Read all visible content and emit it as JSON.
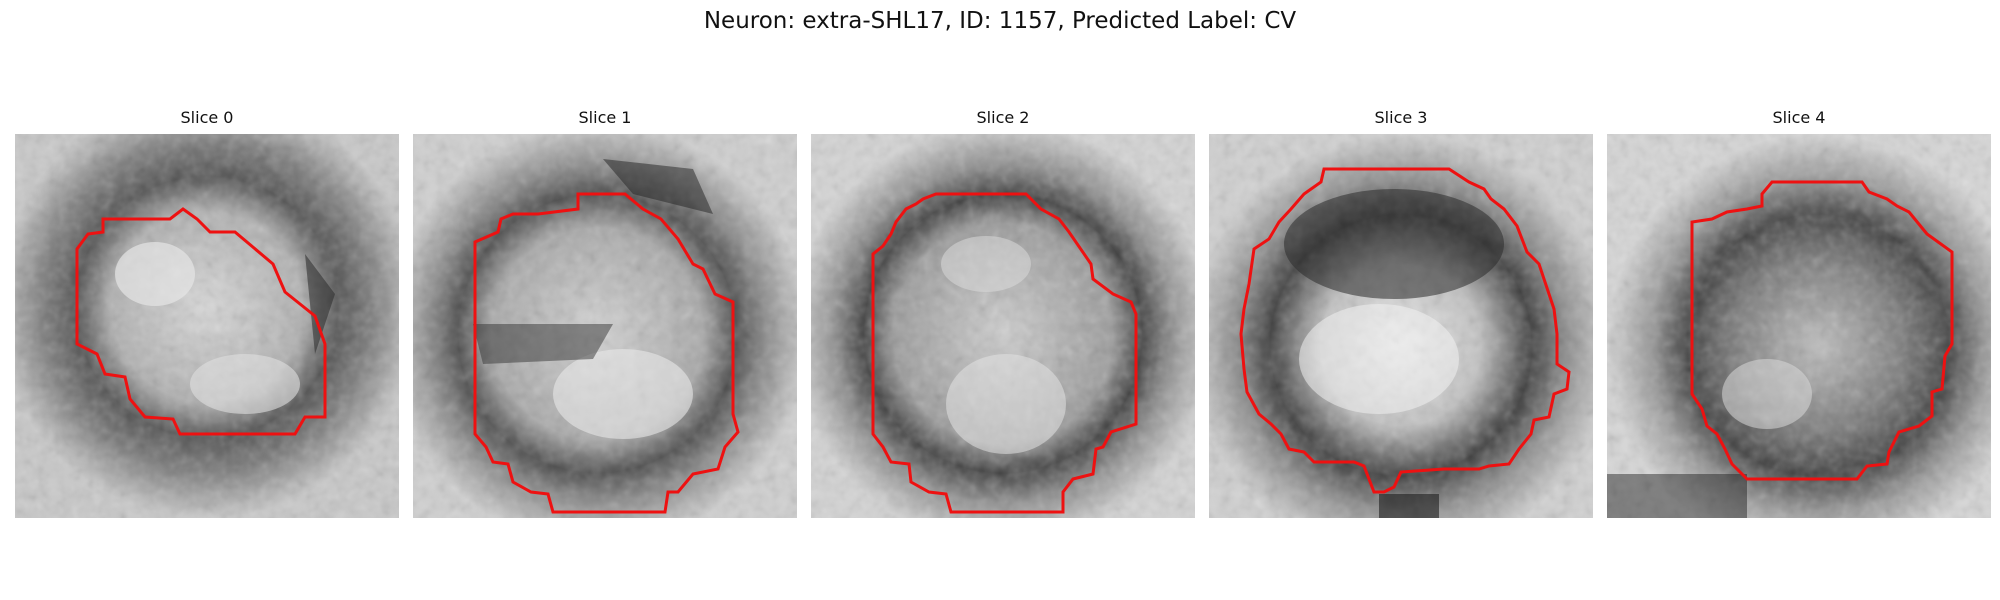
{
  "figure": {
    "title": "Neuron: extra-SHL17, ID: 1157, Predicted Label: CV",
    "contour_color": "#ee1111",
    "panels": [
      {
        "title": "Slice 0"
      },
      {
        "title": "Slice 1"
      },
      {
        "title": "Slice 2"
      },
      {
        "title": "Slice 3"
      },
      {
        "title": "Slice 4"
      }
    ]
  }
}
